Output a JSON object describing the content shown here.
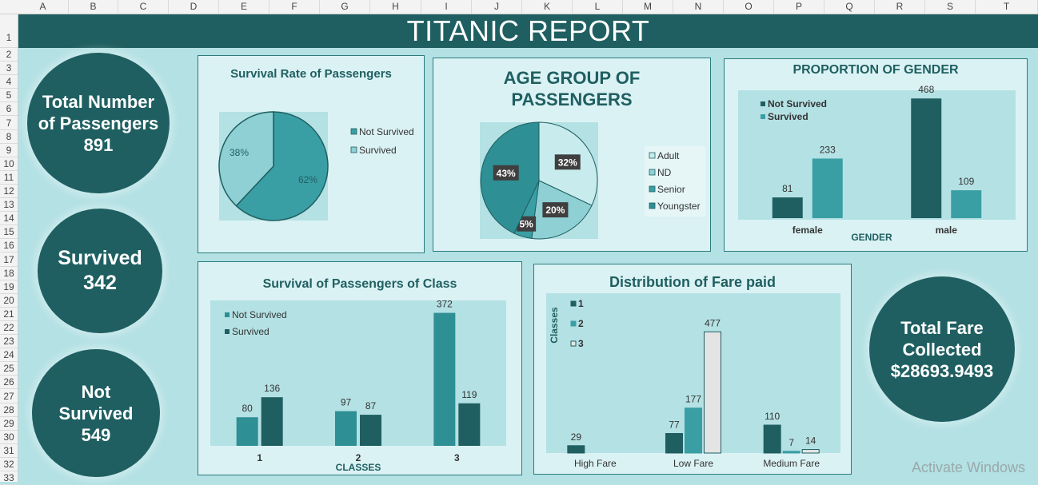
{
  "sheet": {
    "columns": [
      "A",
      "B",
      "C",
      "D",
      "E",
      "F",
      "G",
      "H",
      "I",
      "J",
      "K",
      "L",
      "M",
      "N",
      "O",
      "P",
      "Q",
      "R",
      "S",
      "T"
    ],
    "rows": [
      "1",
      "2",
      "3",
      "4",
      "5",
      "6",
      "7",
      "8",
      "9",
      "10",
      "11",
      "12",
      "13",
      "14",
      "15",
      "16",
      "17",
      "18",
      "19",
      "20",
      "21",
      "22",
      "23",
      "24",
      "25",
      "26",
      "27",
      "28",
      "29",
      "30",
      "31",
      "32",
      "33"
    ]
  },
  "report_title": "TITANIC REPORT",
  "kpis": {
    "total_passengers": {
      "label_line1": "Total Number",
      "label_line2": "of Passengers",
      "value": "891"
    },
    "survived": {
      "label": "Survived",
      "value": "342"
    },
    "not_survived": {
      "label_line1": "Not",
      "label_line2": "Survived",
      "value": "549"
    },
    "total_fare": {
      "label_line1": "Total Fare",
      "label_line2": "Collected",
      "value": "$28693.9493"
    }
  },
  "colors": {
    "dark": "#1f5f61",
    "mid": "#3a9fa4",
    "teal": "#2e8f94",
    "light": "#8ed0d4",
    "pale": "#c5e9ec"
  },
  "chart_data": [
    {
      "id": "survival_rate",
      "type": "pie",
      "title": "Survival Rate of Passengers",
      "slices": [
        {
          "name": "Not Survived",
          "value": 62,
          "label": "62%"
        },
        {
          "name": "Survived",
          "value": 38,
          "label": "38%"
        }
      ],
      "legend": [
        "Not Survived",
        "Survived"
      ],
      "legend_position": "right"
    },
    {
      "id": "age_group",
      "type": "pie",
      "title_line1": "AGE GROUP OF",
      "title_line2": "PASSENGERS",
      "slices": [
        {
          "name": "Adult",
          "value": 32,
          "label": "32%"
        },
        {
          "name": "ND",
          "value": 20,
          "label": "20%"
        },
        {
          "name": "Senior",
          "value": 5,
          "label": "5%"
        },
        {
          "name": "Youngster",
          "value": 43,
          "label": "43%"
        }
      ],
      "legend": [
        "Adult",
        "ND",
        "Senior",
        "Youngster"
      ],
      "legend_position": "right"
    },
    {
      "id": "gender",
      "type": "bar",
      "title": "PROPORTION OF GENDER",
      "xlabel": "GENDER",
      "categories": [
        "female",
        "male"
      ],
      "series": [
        {
          "name": "Not Survived",
          "values": [
            81,
            468
          ]
        },
        {
          "name": "Survived",
          "values": [
            233,
            109
          ]
        }
      ],
      "ylim": [
        0,
        500
      ],
      "legend_position": "top-left"
    },
    {
      "id": "class",
      "type": "bar",
      "title": "Survival of Passengers of Class",
      "xlabel": "CLASSES",
      "categories": [
        "1",
        "2",
        "3"
      ],
      "series": [
        {
          "name": "Not Survived",
          "values": [
            80,
            97,
            372
          ]
        },
        {
          "name": "Survived",
          "values": [
            136,
            87,
            119
          ]
        }
      ],
      "ylim": [
        0,
        380
      ],
      "legend_position": "top-left"
    },
    {
      "id": "fare",
      "type": "bar",
      "title": "Distribution of Fare paid",
      "ylabel": "Classes",
      "categories": [
        "High Fare",
        "Low Fare",
        "Medium Fare"
      ],
      "series": [
        {
          "name": "1",
          "values": [
            29,
            77,
            110
          ]
        },
        {
          "name": "2",
          "values": [
            null,
            177,
            7
          ]
        },
        {
          "name": "3",
          "values": [
            null,
            477,
            14
          ]
        }
      ],
      "ylim": [
        0,
        500
      ],
      "legend_position": "top-left"
    }
  ],
  "watermark": "Activate Windows"
}
